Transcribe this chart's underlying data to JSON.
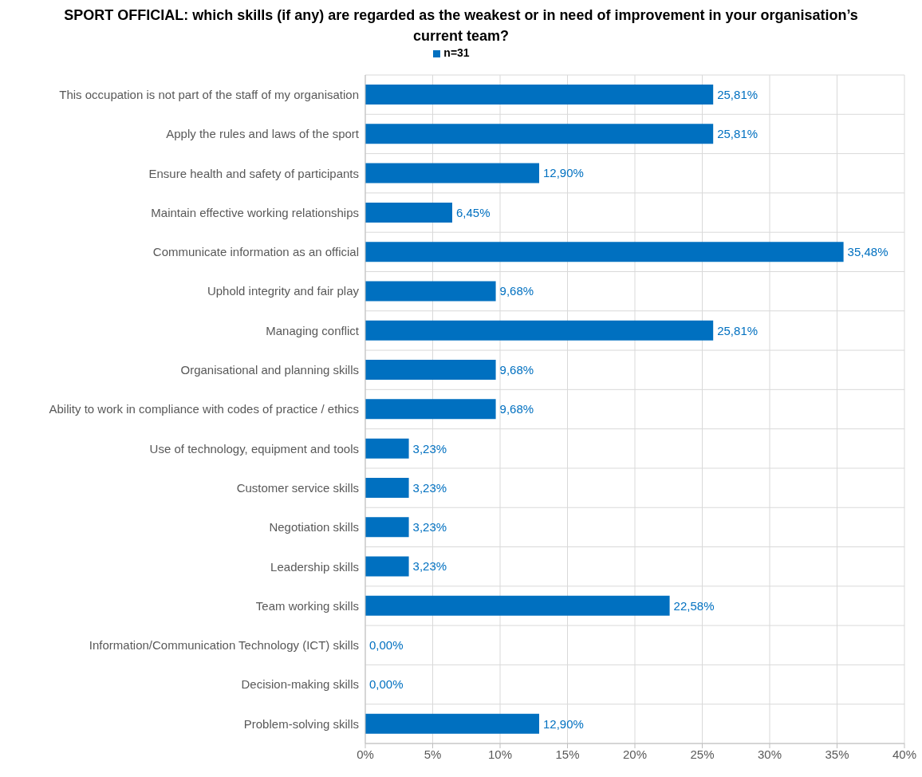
{
  "chart_data": {
    "type": "bar",
    "orientation": "horizontal",
    "title": "SPORT OFFICIAL: which skills (if any) are regarded as the weakest or in need of improvement in your organisation’s current team?",
    "categories": [
      "This occupation is not part of the staff of my organisation",
      "Apply the rules and laws of the sport",
      "Ensure health and safety of participants",
      "Maintain effective working relationships",
      "Communicate information as an official",
      "Uphold integrity and fair play",
      "Managing conflict",
      "Organisational and planning skills",
      "Ability to work in compliance with codes of practice / ethics",
      "Use of technology, equipment and tools",
      "Customer service skills",
      "Negotiation skills",
      "Leadership skills",
      "Team working skills",
      "Information/Communication Technology (ICT) skills",
      "Decision-making skills",
      "Problem-solving skills"
    ],
    "series": [
      {
        "name": "n=31",
        "color": "#0070c0",
        "values": [
          25.81,
          25.81,
          12.9,
          6.45,
          35.48,
          9.68,
          25.81,
          9.68,
          9.68,
          3.23,
          3.23,
          3.23,
          3.23,
          22.58,
          0,
          0,
          12.9
        ],
        "value_labels": [
          "25,81%",
          "25,81%",
          "12,90%",
          "6,45%",
          "35,48%",
          "9,68%",
          "25,81%",
          "9,68%",
          "9,68%",
          "3,23%",
          "3,23%",
          "3,23%",
          "3,23%",
          "22,58%",
          "0,00%",
          "0,00%",
          "12,90%"
        ]
      }
    ],
    "xlim": [
      0,
      40
    ],
    "xticks": [
      {
        "value": 0,
        "label": "0%"
      },
      {
        "value": 5,
        "label": "5%"
      },
      {
        "value": 10,
        "label": "10%"
      },
      {
        "value": 15,
        "label": "15%"
      },
      {
        "value": 20,
        "label": "20%"
      },
      {
        "value": 25,
        "label": "25%"
      },
      {
        "value": 30,
        "label": "30%"
      },
      {
        "value": 35,
        "label": "35%"
      },
      {
        "value": 40,
        "label": "40%"
      }
    ],
    "grid": true,
    "legend": "top"
  }
}
